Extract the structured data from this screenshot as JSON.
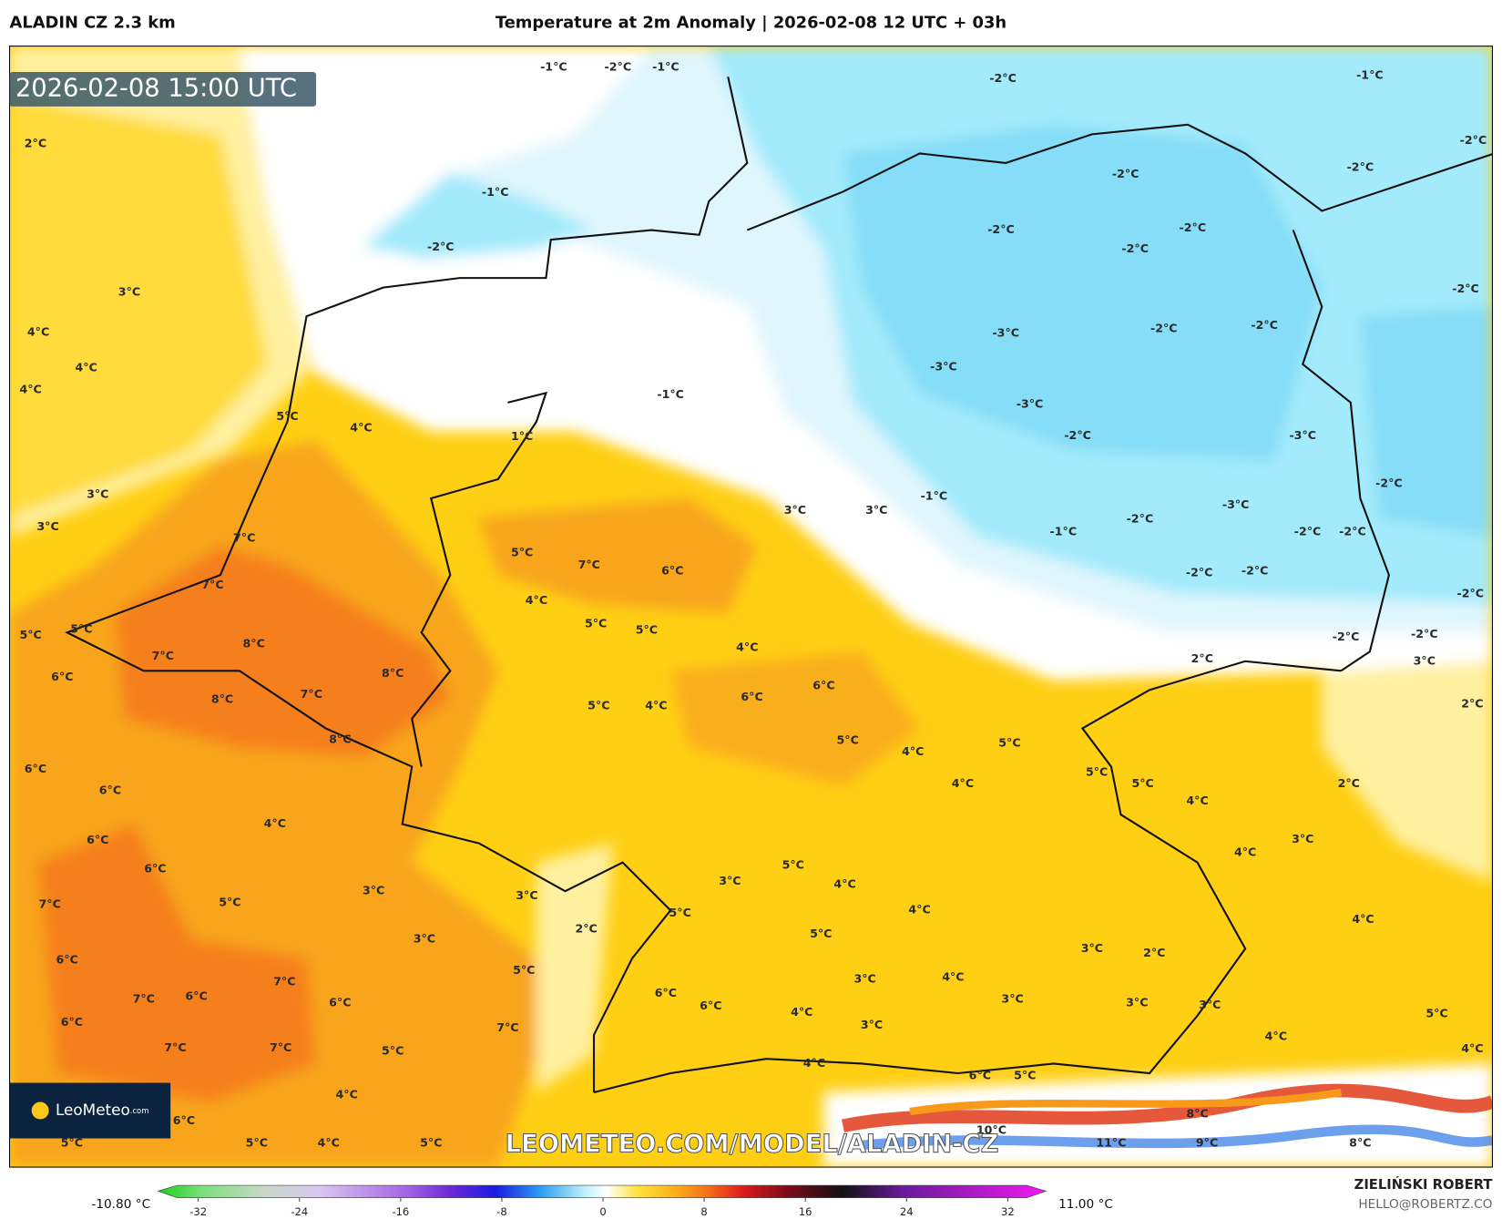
{
  "header": {
    "model": "ALADIN CZ 2.3 km",
    "title": "Temperature at 2m Anomaly | 2026-02-08 12 UTC + 03h"
  },
  "map": {
    "timestamp": "2026-02-08 15:00 UTC",
    "logo": "LeoMeteo",
    "logo_suffix": ".com",
    "watermark": "LEOMETEO.COM/MODEL/ALADIN-CZ",
    "labels": [
      "2°C",
      "3°C",
      "4°C",
      "4°C",
      "4°C",
      "5°C",
      "4°C",
      "3°C",
      "3°C",
      "1°C",
      "-1°C",
      "-1°C",
      "-2°C",
      "-1°C",
      "-2°C",
      "-1°C",
      "-2°C",
      "-1°C",
      "-2°C",
      "-2°C",
      "-2°C",
      "-2°C",
      "-2°C",
      "-2°C",
      "-2°C",
      "-3°C",
      "-2°C",
      "-3°C",
      "-2°C",
      "-2°C",
      "-2°C",
      "-2°C",
      "-2°C",
      "2°C",
      "3°C",
      "2°C",
      "2°C",
      "3°C",
      "4°C",
      "4°C",
      "5°C",
      "4°C",
      "4°C",
      "7°C",
      "5°C",
      "4°C",
      "6°C",
      "5°C",
      "5°C",
      "4°C",
      "6°C",
      "6°C",
      "5°C",
      "4°C",
      "5°C",
      "4°C",
      "5°C",
      "4°C",
      "5°C",
      "5°C",
      "4°C",
      "8°C",
      "8°C",
      "7°C",
      "8°C",
      "8°C",
      "7°C",
      "7°C",
      "7°C",
      "5°C",
      "5°C",
      "6°C",
      "6°C",
      "6°C",
      "6°C",
      "6°C",
      "7°C",
      "5°C",
      "6°C",
      "7°C",
      "7°C",
      "6°C",
      "6°C",
      "6°C",
      "7°C",
      "7°C",
      "5°C",
      "4°C",
      "6°C",
      "5°C",
      "5°C",
      "4°C",
      "5°C",
      "4°C",
      "3°C",
      "3°C",
      "3°C",
      "2°C",
      "5°C",
      "7°C",
      "5°C",
      "3°C",
      "5°C",
      "4°C",
      "5°C",
      "4°C",
      "4°C",
      "3°C",
      "3°C",
      "2°C",
      "3°C",
      "3°C",
      "6°C",
      "6°C",
      "4°C",
      "3°C",
      "3°C",
      "4°C",
      "6°C",
      "5°C",
      "8°C",
      "10°C",
      "11°C",
      "9°C",
      "8°C",
      "-3°C",
      "-3°C",
      "-3°C",
      "-2°C",
      "-2°C",
      "-1°C",
      "-2°C",
      "-2°C",
      "-2°C",
      "-2°C",
      "3°C",
      "3°C",
      "-1°C"
    ]
  },
  "colorbar": {
    "min_label": "-10.80 °C",
    "max_label": "11.00 °C",
    "ticks": [
      -32,
      -24,
      -16,
      -8,
      0,
      8,
      16,
      24,
      32
    ]
  },
  "footer": {
    "author": "ZIELIŃSKI ROBERT",
    "email": "HELLO@ROBERTZ.CO"
  }
}
